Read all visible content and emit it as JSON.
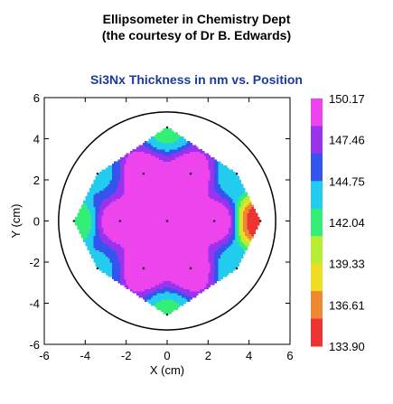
{
  "header": {
    "line1": "Ellipsometer in Chemistry Dept",
    "line2": "(the courtesy of Dr B. Edwards)"
  },
  "chart_data": {
    "type": "contour",
    "title": "Si3Nx Thickness in nm vs. Position",
    "xlabel": "X (cm)",
    "ylabel": "Y (cm)",
    "xlim": [
      -6,
      6
    ],
    "ylim": [
      -6,
      6
    ],
    "x_ticks": [
      "-6",
      "-4",
      "-2",
      "0",
      "2",
      "4",
      "6"
    ],
    "y_ticks": [
      "-6",
      "-4",
      "-2",
      "0",
      "2",
      "4",
      "6"
    ],
    "wafer_radius": 5.3,
    "colorbar": {
      "labels": [
        "150.17",
        "147.46",
        "144.75",
        "142.04",
        "139.33",
        "136.61",
        "133.90"
      ],
      "colors": [
        "#ee44ee",
        "#9933ee",
        "#3355ee",
        "#22ccee",
        "#33ee77",
        "#b7ee33",
        "#eedd22",
        "#ee8833",
        "#ee3333"
      ]
    },
    "points": [
      {
        "x": 0,
        "y": 0,
        "z": 150.2
      },
      {
        "x": 0,
        "y": 4.55,
        "z": 142.6
      },
      {
        "x": 0,
        "y": -4.55,
        "z": 142.6
      },
      {
        "x": -4.55,
        "y": 0,
        "z": 142.0
      },
      {
        "x": 4.55,
        "y": 0,
        "z": 135.0
      },
      {
        "x": -2.3,
        "y": 0,
        "z": 149.5
      },
      {
        "x": 2.3,
        "y": 0,
        "z": 149.5
      },
      {
        "x": -1.15,
        "y": 2.3,
        "z": 149.5
      },
      {
        "x": 1.15,
        "y": 2.3,
        "z": 149.5
      },
      {
        "x": -1.15,
        "y": -2.3,
        "z": 149.5
      },
      {
        "x": 1.15,
        "y": -2.3,
        "z": 149.5
      },
      {
        "x": -3.4,
        "y": 2.3,
        "z": 144.5
      },
      {
        "x": 3.4,
        "y": 2.3,
        "z": 143.5
      },
      {
        "x": -3.4,
        "y": -2.3,
        "z": 144.5
      },
      {
        "x": 3.4,
        "y": -2.3,
        "z": 143.5
      }
    ]
  }
}
